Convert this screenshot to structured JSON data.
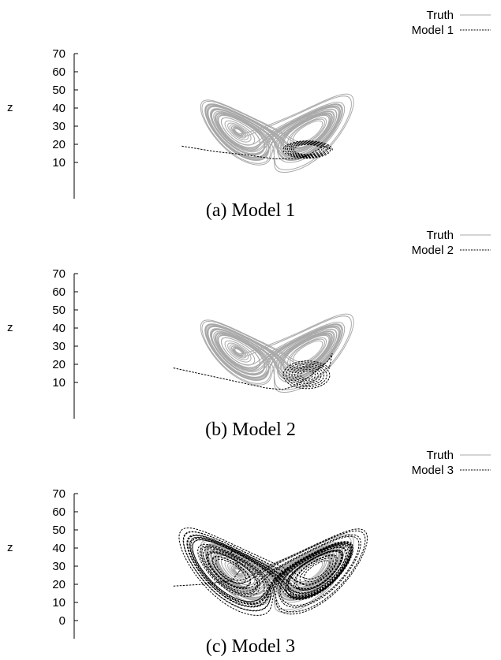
{
  "colors": {
    "truth": "#a9a9a9",
    "model": "#000000",
    "axis": "#000000"
  },
  "figure": {
    "captions": [
      "(a) Model 1",
      "(b) Model 2",
      "(c) Model 3"
    ]
  },
  "chart_data": [
    {
      "type": "line",
      "zlabel": "z",
      "yticks": [
        10,
        20,
        30,
        40,
        50,
        60,
        70
      ],
      "ylim": [
        -10,
        70
      ],
      "legend": [
        "Truth",
        "Model 1"
      ],
      "legend_position": "top-right",
      "series": [
        {
          "name": "Truth",
          "style": "solid",
          "trajectory": "lorenz-butterfly",
          "z_range": [
            5,
            45
          ]
        },
        {
          "name": "Model 1",
          "style": "dashed",
          "z_start": 19,
          "z_range": [
            10,
            24
          ],
          "behavior": "decays into small loops on right wing"
        }
      ]
    },
    {
      "type": "line",
      "zlabel": "z",
      "yticks": [
        10,
        20,
        30,
        40,
        50,
        60,
        70
      ],
      "ylim": [
        -10,
        70
      ],
      "legend": [
        "Truth",
        "Model 2"
      ],
      "legend_position": "top-right",
      "series": [
        {
          "name": "Truth",
          "style": "solid",
          "trajectory": "lorenz-butterfly",
          "z_range": [
            5,
            45
          ]
        },
        {
          "name": "Model 2",
          "style": "dashed",
          "z_start": 18,
          "z_range": [
            5,
            27
          ],
          "behavior": "dips then spirals on right wing"
        }
      ]
    },
    {
      "type": "line",
      "zlabel": "z",
      "yticks": [
        0,
        10,
        20,
        30,
        40,
        50,
        60,
        70
      ],
      "ylim": [
        -10,
        70
      ],
      "legend": [
        "Truth",
        "Model 3"
      ],
      "legend_position": "top-right",
      "series": [
        {
          "name": "Truth",
          "style": "solid",
          "trajectory": "lorenz-butterfly",
          "z_range": [
            5,
            45
          ]
        },
        {
          "name": "Model 3",
          "style": "dashed",
          "z_start": 19,
          "z_range": [
            7,
            63
          ],
          "behavior": "larger butterfly overlapping truth"
        }
      ]
    }
  ]
}
